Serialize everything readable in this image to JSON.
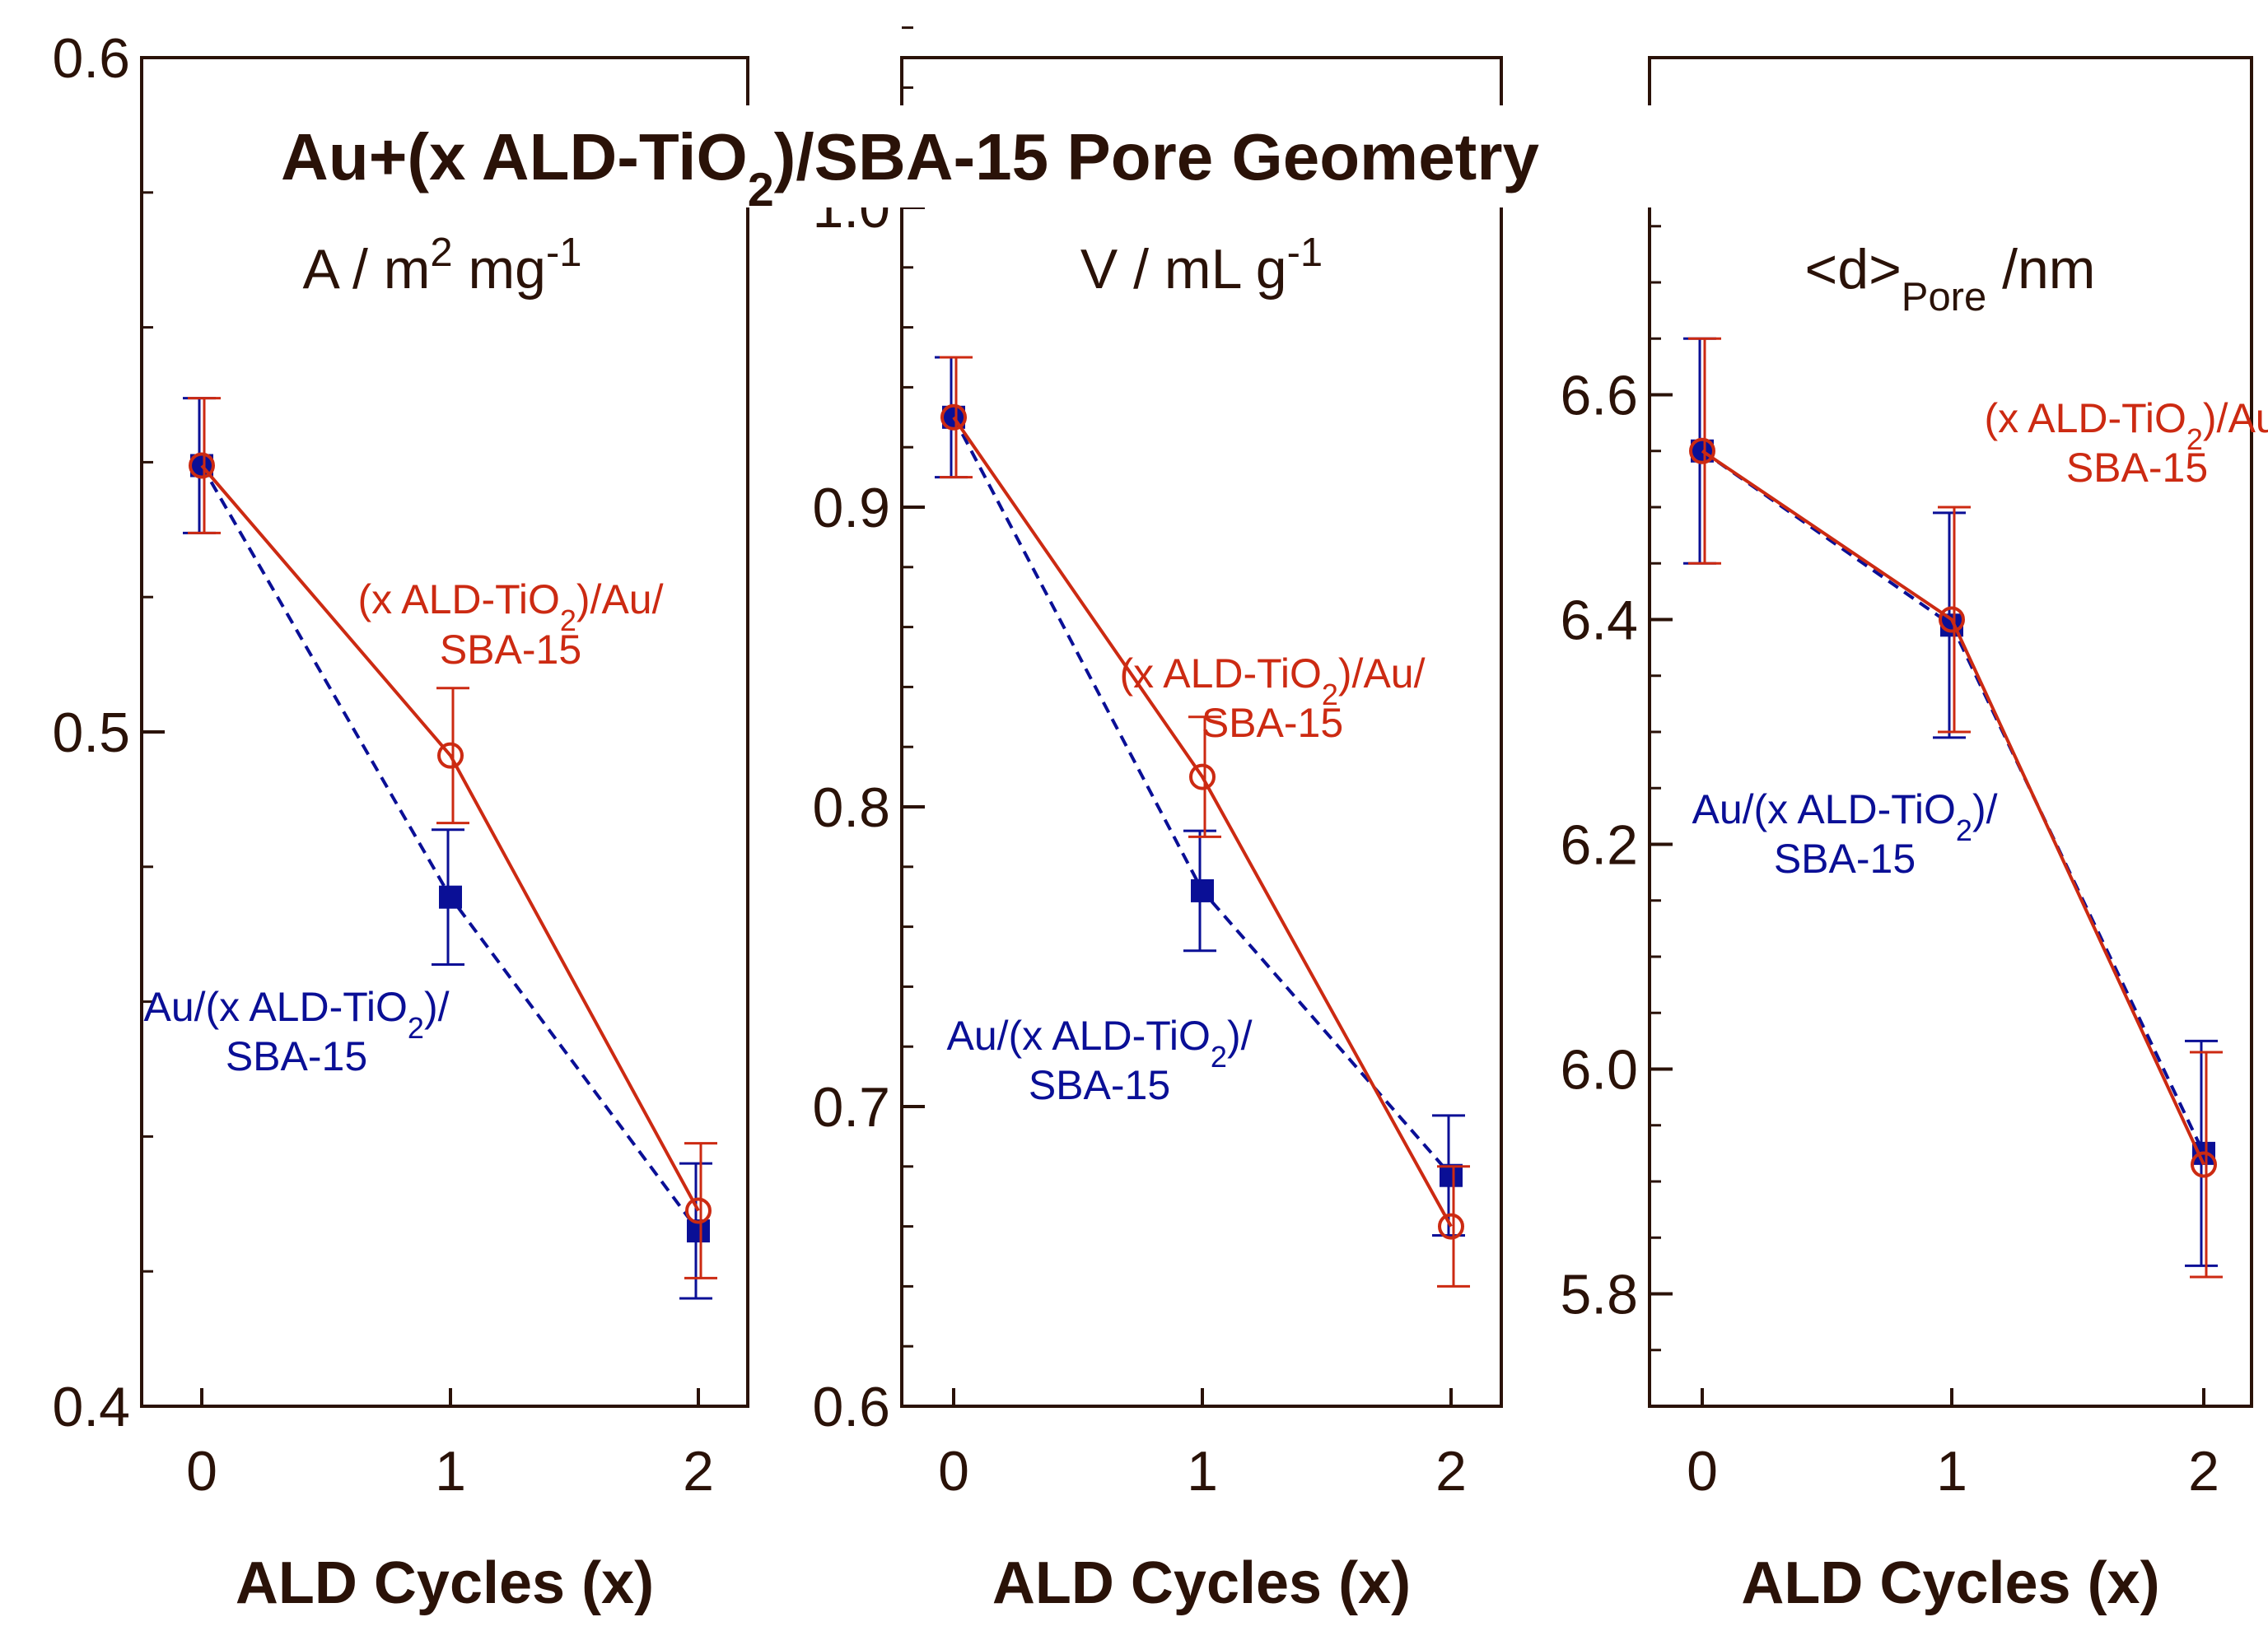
{
  "chart_data": {
    "type": "line",
    "title_parts": [
      "Au+(x ALD-TiO",
      "2",
      ")/SBA-15 Pore Geometry"
    ],
    "xlabel": "ALD Cycles (x)",
    "categories": [
      "0",
      "1",
      "2"
    ],
    "x": [
      0,
      1,
      2
    ],
    "colors": {
      "red": "#cc2a12",
      "blue": "#0a0f96",
      "axis": "#2a1208"
    },
    "series_names": [
      "(x ALD-TiO2)/Au/SBA-15",
      "Au/(x ALD-TiO2)/SBA-15"
    ],
    "panels": [
      {
        "quantity_parts": [
          "A / m",
          "2",
          " mg",
          "-1"
        ],
        "ylim": [
          0.4,
          0.6
        ],
        "ytick_values": [
          0.4,
          0.5,
          0.6
        ],
        "ytick_labels": [
          "0.4",
          "0.5",
          "0.6"
        ],
        "minor_step": 0.02,
        "series": [
          {
            "name": "(x ALD-TiO2)/Au/SBA-15",
            "color": "red",
            "marker": "open-circle",
            "linestyle": "solid",
            "values": [
              0.5395,
              0.4965,
              0.429
            ],
            "errors": [
              0.01,
              0.01,
              0.01
            ]
          },
          {
            "name": "Au/(x ALD-TiO2)/SBA-15",
            "color": "blue",
            "marker": "filled-square",
            "linestyle": "dashed",
            "values": [
              0.5395,
              0.4755,
              0.426
            ],
            "errors": [
              0.01,
              0.01,
              0.01
            ]
          }
        ],
        "annotations": [
          {
            "series": "red",
            "lines": [
              [
                "(x ALD-TiO",
                "2",
                ")/Au/"
              ],
              [
                "SBA-15"
              ]
            ]
          },
          {
            "series": "blue",
            "lines": [
              [
                "Au/(x ALD-TiO",
                "2",
                ")/"
              ],
              [
                "SBA-15"
              ]
            ]
          }
        ]
      },
      {
        "quantity_parts": [
          "V / mL g",
          "-1"
        ],
        "ylim": [
          0.6,
          1.05
        ],
        "ytick_values": [
          0.6,
          0.7,
          0.8,
          0.9,
          1.0
        ],
        "ytick_labels": [
          "0.6",
          "0.7",
          "0.8",
          "0.9",
          "1.0"
        ],
        "minor_step": 0.02,
        "series": [
          {
            "name": "(x ALD-TiO2)/Au/SBA-15",
            "color": "red",
            "marker": "open-circle",
            "linestyle": "solid",
            "values": [
              0.93,
              0.81,
              0.66
            ],
            "errors": [
              0.02,
              0.02,
              0.02
            ]
          },
          {
            "name": "Au/(x ALD-TiO2)/SBA-15",
            "color": "blue",
            "marker": "filled-square",
            "linestyle": "dashed",
            "values": [
              0.93,
              0.772,
              0.677
            ],
            "errors": [
              0.02,
              0.02,
              0.02
            ]
          }
        ],
        "annotations": [
          {
            "series": "red",
            "lines": [
              [
                "(x ALD-TiO",
                "2",
                ")/Au/"
              ],
              [
                "SBA-15"
              ]
            ]
          },
          {
            "series": "blue",
            "lines": [
              [
                "Au/(x ALD-TiO",
                "2",
                ")/"
              ],
              [
                "SBA-15"
              ]
            ]
          }
        ]
      },
      {
        "quantity_parts": [
          "<d>",
          "Pore",
          " /nm"
        ],
        "ylim": [
          5.7,
          6.9
        ],
        "ytick_values": [
          5.8,
          6.0,
          6.2,
          6.4,
          6.6
        ],
        "ytick_labels": [
          "5.8",
          "6.0",
          "6.2",
          "6.4",
          "6.6"
        ],
        "minor_step": 0.05,
        "series": [
          {
            "name": "(x ALD-TiO2)/Au/SBA-15",
            "color": "red",
            "marker": "open-circle",
            "linestyle": "solid",
            "values": [
              6.55,
              6.4,
              5.915
            ],
            "errors": [
              0.1,
              0.1,
              0.1
            ]
          },
          {
            "name": "Au/(x ALD-TiO2)/SBA-15",
            "color": "blue",
            "marker": "filled-square",
            "linestyle": "dashed",
            "values": [
              6.55,
              6.395,
              5.925
            ],
            "errors": [
              0.1,
              0.1,
              0.1
            ]
          }
        ],
        "annotations": [
          {
            "series": "red",
            "lines": [
              [
                "(x ALD-TiO",
                "2",
                ")/Au/"
              ],
              [
                "SBA-15"
              ]
            ]
          },
          {
            "series": "blue",
            "lines": [
              [
                "Au/(x ALD-TiO",
                "2",
                ")/"
              ],
              [
                "SBA-15"
              ]
            ]
          }
        ]
      }
    ]
  }
}
